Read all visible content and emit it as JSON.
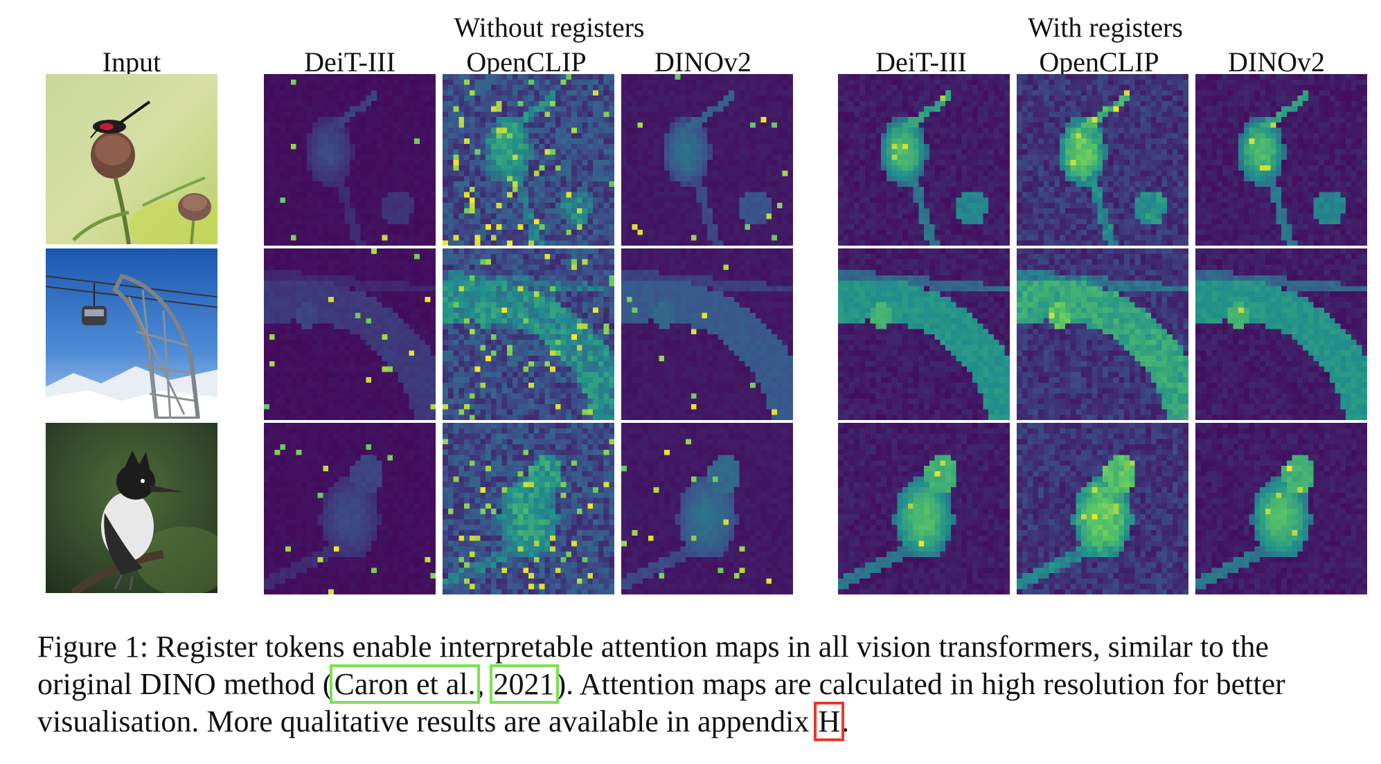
{
  "headers": {
    "input": "Input",
    "group_without": "Without registers",
    "group_with": "With registers",
    "models": [
      "DeiT-III",
      "OpenCLIP",
      "DINOv2"
    ]
  },
  "rows": [
    {
      "subject": "moth on thistle flower"
    },
    {
      "subject": "cable car pylon"
    },
    {
      "subject": "kingfisher on branch"
    }
  ],
  "colors": {
    "viridis_dark": "#440154",
    "viridis_mid": "#31688e",
    "viridis_green": "#35b779",
    "viridis_yellow": "#fde725",
    "citation_box": "#77e34f",
    "ref_box": "#e8392c"
  },
  "caption": {
    "part1": "Figure 1: Register tokens enable  interpretable attention maps in all vision transformers, similar to the original DINO method (",
    "cite_author": "Caron et al.",
    "cite_sep": ", ",
    "cite_year": "2021",
    "part2": "). Attention maps are calculated in high resolution for better visualisation. More qualitative results are available in appendix ",
    "appendix_ref": "H",
    "part3": "."
  }
}
